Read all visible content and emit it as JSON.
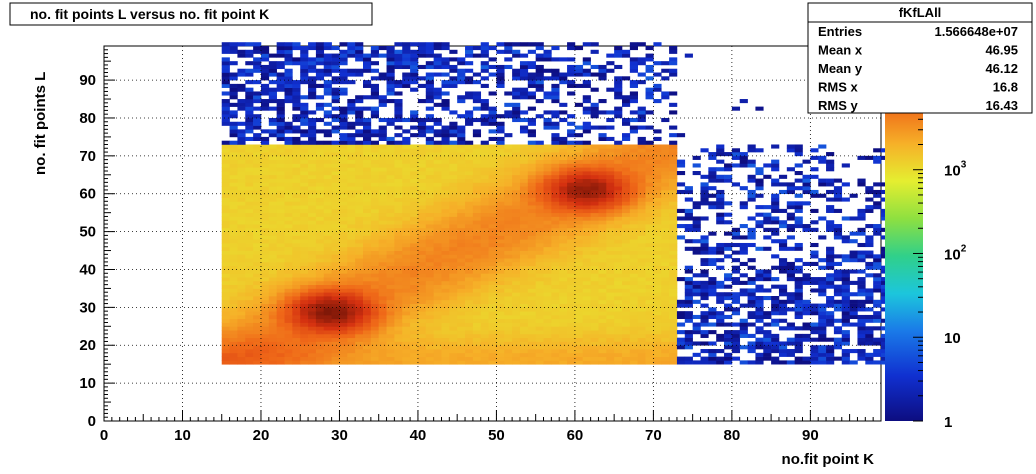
{
  "chart_data": {
    "type": "heatmap",
    "title": "no. fit points L versus no. fit point K",
    "xlabel": "no.fit point K",
    "ylabel": "no. fit points  L",
    "xlim": [
      0,
      99
    ],
    "ylim": [
      0,
      99
    ],
    "x_ticks": [
      0,
      10,
      20,
      30,
      40,
      50,
      60,
      70,
      80,
      90
    ],
    "y_ticks": [
      0,
      10,
      20,
      30,
      40,
      50,
      60,
      70,
      80,
      90
    ],
    "bin_width": 1,
    "grid": true,
    "z_scale": "log",
    "zlim": [
      1,
      30000
    ],
    "z_tick_labels": [
      {
        "value": 1,
        "label": "1",
        "sup": ""
      },
      {
        "value": 10,
        "label": "10",
        "sup": ""
      },
      {
        "value": 100,
        "label": "10",
        "sup": "2"
      },
      {
        "value": 1000,
        "label": "10",
        "sup": "3"
      },
      {
        "value": 10000,
        "label": "10",
        "sup": ""
      }
    ],
    "dense_region": {
      "x_range": [
        15,
        72
      ],
      "y_range": [
        15,
        72
      ],
      "base_value": 1200,
      "hot_spots": [
        {
          "x": 28.5,
          "y": 28.5,
          "peak": 25000
        },
        {
          "x": 61,
          "y": 60.5,
          "peak": 22000
        }
      ],
      "ridge": "diagonal x = y"
    },
    "sparse_regions": [
      {
        "x_range": [
          15,
          72
        ],
        "y_range": [
          73,
          99
        ],
        "value_range": [
          1,
          8
        ]
      },
      {
        "x_range": [
          73,
          99
        ],
        "y_range": [
          15,
          72
        ],
        "value_range": [
          1,
          8
        ]
      },
      {
        "x_range": [
          73,
          99
        ],
        "y_range": [
          73,
          99
        ],
        "value_range": [
          1,
          3
        ]
      }
    ],
    "stats_box": {
      "title": "fKfLAll",
      "rows": [
        {
          "label": "Entries",
          "value": "1.566648e+07"
        },
        {
          "label": "Mean x",
          "value": "46.95"
        },
        {
          "label": "Mean y",
          "value": "46.12"
        },
        {
          "label": "RMS x",
          "value": "16.8"
        },
        {
          "label": "RMS y",
          "value": "16.43"
        }
      ]
    }
  }
}
